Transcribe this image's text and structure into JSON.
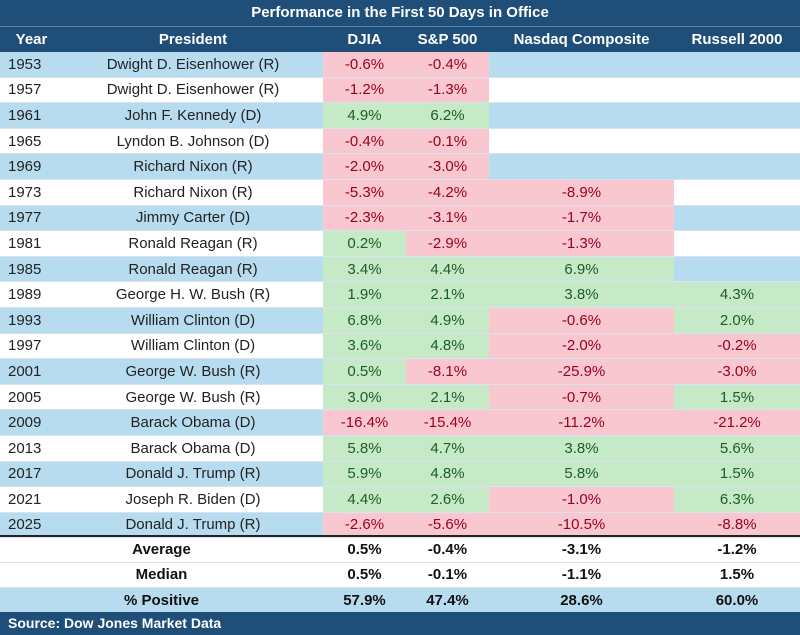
{
  "chart_data": {
    "type": "table",
    "title": "Performance in the First 50 Days in Office",
    "columns": [
      "Year",
      "President",
      "DJIA",
      "S&P 500",
      "Nasdaq Composite",
      "Russell 2000"
    ],
    "rows": [
      [
        "1953",
        "Dwight D. Eisenhower (R)",
        "-0.6%",
        "-0.4%",
        "",
        ""
      ],
      [
        "1957",
        "Dwight D. Eisenhower (R)",
        "-1.2%",
        "-1.3%",
        "",
        ""
      ],
      [
        "1961",
        "John F. Kennedy (D)",
        "4.9%",
        "6.2%",
        "",
        ""
      ],
      [
        "1965",
        "Lyndon B. Johnson (D)",
        "-0.4%",
        "-0.1%",
        "",
        ""
      ],
      [
        "1969",
        "Richard Nixon (R)",
        "-2.0%",
        "-3.0%",
        "",
        ""
      ],
      [
        "1973",
        "Richard Nixon (R)",
        "-5.3%",
        "-4.2%",
        "-8.9%",
        ""
      ],
      [
        "1977",
        "Jimmy Carter (D)",
        "-2.3%",
        "-3.1%",
        "-1.7%",
        ""
      ],
      [
        "1981",
        "Ronald Reagan (R)",
        "0.2%",
        "-2.9%",
        "-1.3%",
        ""
      ],
      [
        "1985",
        "Ronald Reagan (R)",
        "3.4%",
        "4.4%",
        "6.9%",
        ""
      ],
      [
        "1989",
        "George H. W. Bush (R)",
        "1.9%",
        "2.1%",
        "3.8%",
        "4.3%"
      ],
      [
        "1993",
        "William Clinton (D)",
        "6.8%",
        "4.9%",
        "-0.6%",
        "2.0%"
      ],
      [
        "1997",
        "William Clinton (D)",
        "3.6%",
        "4.8%",
        "-2.0%",
        "-0.2%"
      ],
      [
        "2001",
        "George W. Bush (R)",
        "0.5%",
        "-8.1%",
        "-25.9%",
        "-3.0%"
      ],
      [
        "2005",
        "George W. Bush (R)",
        "3.0%",
        "2.1%",
        "-0.7%",
        "1.5%"
      ],
      [
        "2009",
        "Barack Obama (D)",
        "-16.4%",
        "-15.4%",
        "-11.2%",
        "-21.2%"
      ],
      [
        "2013",
        "Barack Obama (D)",
        "5.8%",
        "4.7%",
        "3.8%",
        "5.6%"
      ],
      [
        "2017",
        "Donald J. Trump (R)",
        "5.9%",
        "4.8%",
        "5.8%",
        "1.5%"
      ],
      [
        "2021",
        "Joseph R. Biden (D)",
        "4.4%",
        "2.6%",
        "-1.0%",
        "6.3%"
      ],
      [
        "2025",
        "Donald J. Trump (R)",
        "-2.6%",
        "-5.6%",
        "-10.5%",
        "-8.8%"
      ]
    ],
    "summary": [
      {
        "label": "Average",
        "values": [
          "0.5%",
          "-0.4%",
          "-3.1%",
          "-1.2%"
        ]
      },
      {
        "label": "Median",
        "values": [
          "0.5%",
          "-0.1%",
          "-1.1%",
          "1.5%"
        ]
      },
      {
        "label": "% Positive",
        "values": [
          "57.9%",
          "47.4%",
          "28.6%",
          "60.0%"
        ]
      }
    ],
    "source": "Source: Dow Jones Market Data",
    "colors": {
      "header": "#1f4e79",
      "row_blue": "#b8dcef",
      "positive_fill": "#c6eac8",
      "positive_text": "#1b5e20",
      "negative_fill": "#f9c7cf",
      "negative_text": "#9c0020"
    }
  }
}
